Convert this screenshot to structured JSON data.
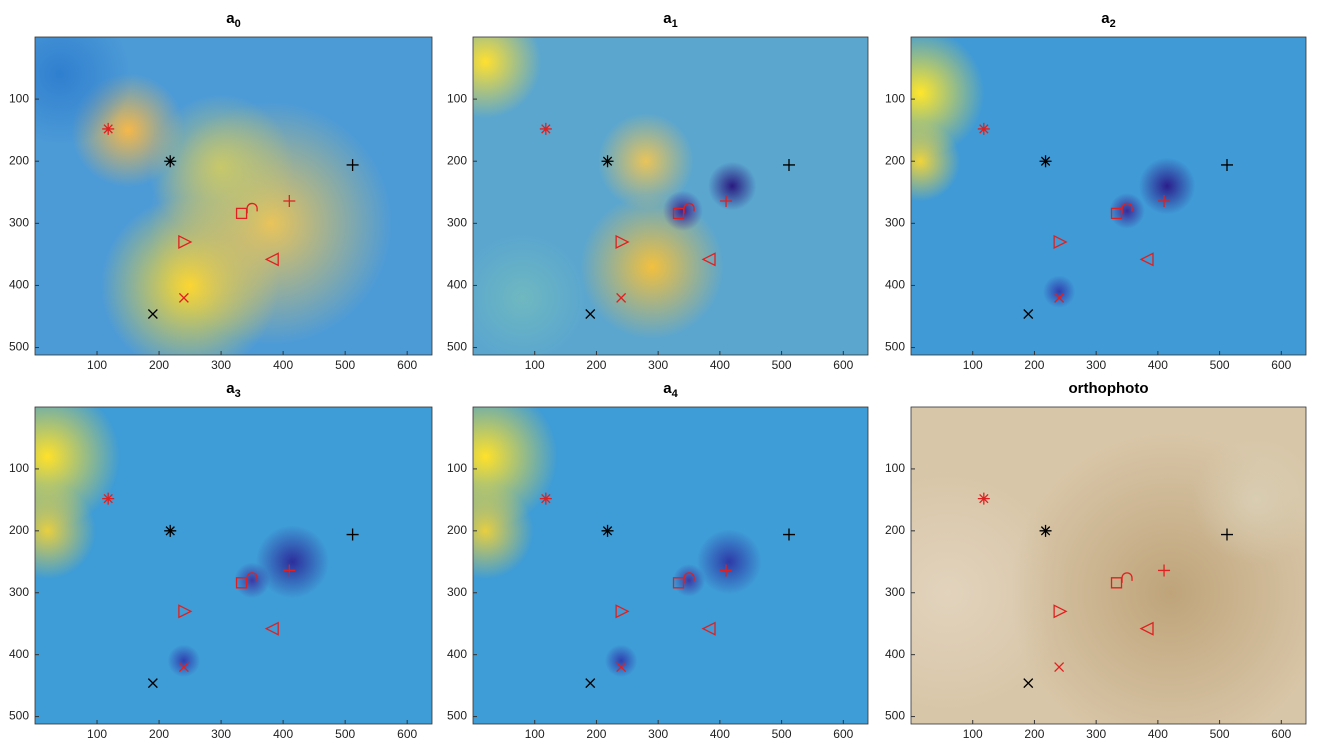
{
  "chart_data": [
    {
      "type": "scatter",
      "title": "a",
      "title_sub": "0",
      "xlim": [
        0,
        640
      ],
      "ylim": [
        512,
        0
      ],
      "xticks": [
        100,
        200,
        300,
        400,
        500,
        600
      ],
      "yticks": [
        100,
        200,
        300,
        400,
        500
      ],
      "x": [
        118,
        218,
        512,
        410,
        333,
        350,
        240,
        384,
        240,
        190
      ],
      "y": [
        148,
        200,
        206,
        264,
        284,
        276,
        330,
        358,
        420,
        446
      ],
      "markers": [
        "asterisk",
        "asterisk",
        "plus",
        "plus",
        "square",
        "arc",
        "triangle-right",
        "triangle-left",
        "cross",
        "cross"
      ],
      "colors": [
        "#e02020",
        "#000000",
        "#000000",
        "#e02020",
        "#e02020",
        "#e02020",
        "#e02020",
        "#e02020",
        "#e02020",
        "#000000"
      ]
    },
    {
      "type": "scatter",
      "title": "a",
      "title_sub": "1",
      "xlim": [
        0,
        640
      ],
      "ylim": [
        512,
        0
      ],
      "xticks": [
        100,
        200,
        300,
        400,
        500,
        600
      ],
      "yticks": [
        100,
        200,
        300,
        400,
        500
      ],
      "x": [
        118,
        218,
        512,
        410,
        333,
        350,
        240,
        384,
        240,
        190
      ],
      "y": [
        148,
        200,
        206,
        264,
        284,
        276,
        330,
        358,
        420,
        446
      ],
      "markers": [
        "asterisk",
        "asterisk",
        "plus",
        "plus",
        "square",
        "arc",
        "triangle-right",
        "triangle-left",
        "cross",
        "cross"
      ],
      "colors": [
        "#e02020",
        "#000000",
        "#000000",
        "#e02020",
        "#e02020",
        "#e02020",
        "#e02020",
        "#e02020",
        "#e02020",
        "#000000"
      ]
    },
    {
      "type": "scatter",
      "title": "a",
      "title_sub": "2",
      "xlim": [
        0,
        640
      ],
      "ylim": [
        512,
        0
      ],
      "xticks": [
        100,
        200,
        300,
        400,
        500,
        600
      ],
      "yticks": [
        100,
        200,
        300,
        400,
        500
      ],
      "x": [
        118,
        218,
        512,
        410,
        333,
        350,
        240,
        384,
        240,
        190
      ],
      "y": [
        148,
        200,
        206,
        264,
        284,
        276,
        330,
        358,
        420,
        446
      ],
      "markers": [
        "asterisk",
        "asterisk",
        "plus",
        "plus",
        "square",
        "arc",
        "triangle-right",
        "triangle-left",
        "cross",
        "cross"
      ],
      "colors": [
        "#e02020",
        "#000000",
        "#000000",
        "#e02020",
        "#e02020",
        "#e02020",
        "#e02020",
        "#e02020",
        "#e02020",
        "#000000"
      ]
    },
    {
      "type": "scatter",
      "title": "a",
      "title_sub": "3",
      "xlim": [
        0,
        640
      ],
      "ylim": [
        512,
        0
      ],
      "xticks": [
        100,
        200,
        300,
        400,
        500,
        600
      ],
      "yticks": [
        100,
        200,
        300,
        400,
        500
      ],
      "x": [
        118,
        218,
        512,
        410,
        333,
        350,
        240,
        384,
        240,
        190
      ],
      "y": [
        148,
        200,
        206,
        264,
        284,
        276,
        330,
        358,
        420,
        446
      ],
      "markers": [
        "asterisk",
        "asterisk",
        "plus",
        "plus",
        "square",
        "arc",
        "triangle-right",
        "triangle-left",
        "cross",
        "cross"
      ],
      "colors": [
        "#e02020",
        "#000000",
        "#000000",
        "#e02020",
        "#e02020",
        "#e02020",
        "#e02020",
        "#e02020",
        "#e02020",
        "#000000"
      ]
    },
    {
      "type": "scatter",
      "title": "a",
      "title_sub": "4",
      "xlim": [
        0,
        640
      ],
      "ylim": [
        512,
        0
      ],
      "xticks": [
        100,
        200,
        300,
        400,
        500,
        600
      ],
      "yticks": [
        100,
        200,
        300,
        400,
        500
      ],
      "x": [
        118,
        218,
        512,
        410,
        333,
        350,
        240,
        384,
        240,
        190
      ],
      "y": [
        148,
        200,
        206,
        264,
        284,
        276,
        330,
        358,
        420,
        446
      ],
      "markers": [
        "asterisk",
        "asterisk",
        "plus",
        "plus",
        "square",
        "arc",
        "triangle-right",
        "triangle-left",
        "cross",
        "cross"
      ],
      "colors": [
        "#e02020",
        "#000000",
        "#000000",
        "#e02020",
        "#e02020",
        "#e02020",
        "#e02020",
        "#e02020",
        "#e02020",
        "#000000"
      ]
    },
    {
      "type": "scatter",
      "title": "orthophoto",
      "xlim": [
        0,
        640
      ],
      "ylim": [
        512,
        0
      ],
      "xticks": [
        100,
        200,
        300,
        400,
        500,
        600
      ],
      "yticks": [
        100,
        200,
        300,
        400,
        500
      ],
      "x": [
        118,
        218,
        512,
        410,
        333,
        350,
        240,
        384,
        240,
        190
      ],
      "y": [
        148,
        200,
        206,
        264,
        284,
        276,
        330,
        358,
        420,
        446
      ],
      "markers": [
        "asterisk",
        "asterisk",
        "plus",
        "plus",
        "square",
        "arc",
        "triangle-right",
        "triangle-left",
        "cross",
        "cross"
      ],
      "colors": [
        "#e02020",
        "#000000",
        "#000000",
        "#e02020",
        "#e02020",
        "#e02020",
        "#e02020",
        "#e02020",
        "#e02020",
        "#000000"
      ]
    }
  ]
}
